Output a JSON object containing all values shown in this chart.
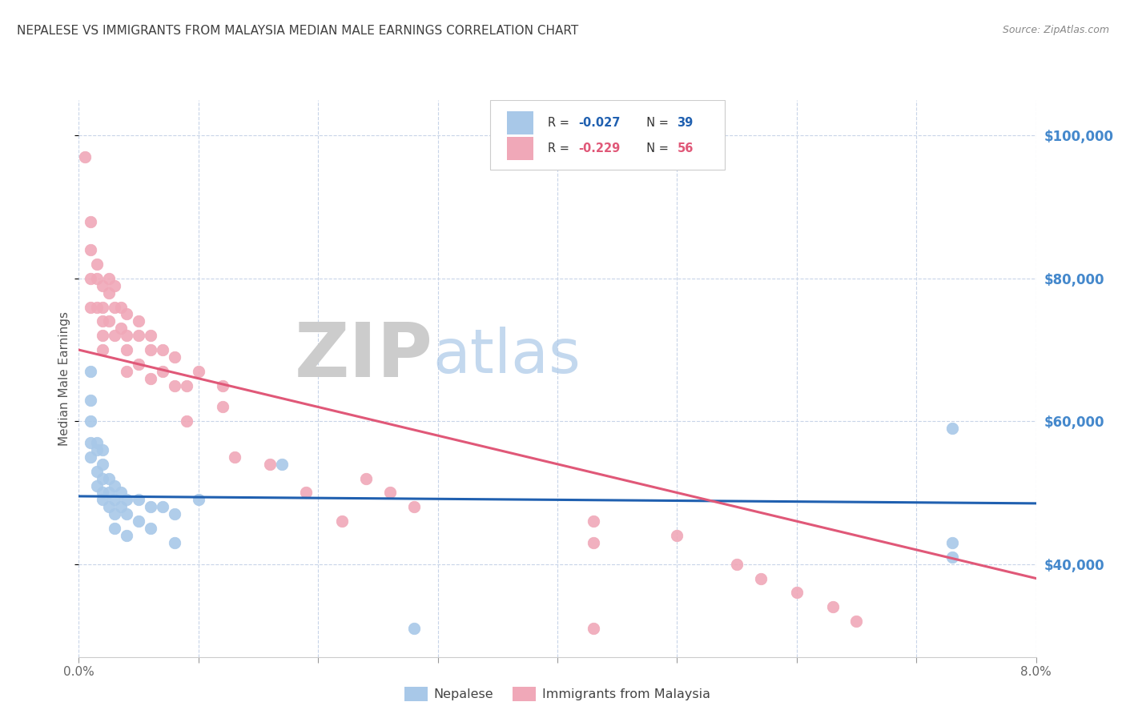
{
  "title": "NEPALESE VS IMMIGRANTS FROM MALAYSIA MEDIAN MALE EARNINGS CORRELATION CHART",
  "source": "Source: ZipAtlas.com",
  "ylabel": "Median Male Earnings",
  "xlim": [
    0.0,
    0.08
  ],
  "ylim": [
    27000,
    105000
  ],
  "xtick_positions": [
    0.0,
    0.01,
    0.02,
    0.03,
    0.04,
    0.05,
    0.06,
    0.07,
    0.08
  ],
  "xticklabels": [
    "0.0%",
    "",
    "",
    "",
    "",
    "",
    "",
    "",
    "8.0%"
  ],
  "ytick_positions": [
    40000,
    60000,
    80000,
    100000
  ],
  "ytick_labels_right": [
    "$40,000",
    "$60,000",
    "$80,000",
    "$100,000"
  ],
  "legend_r1": "R = -0.027",
  "legend_n1": "N = 39",
  "legend_r2": "R = -0.229",
  "legend_n2": "N = 56",
  "watermark_zip": "ZIP",
  "watermark_atlas": "atlas",
  "blue_color": "#a8c8e8",
  "pink_color": "#f0a8b8",
  "blue_line_color": "#2060b0",
  "pink_line_color": "#e05878",
  "background_color": "#ffffff",
  "grid_color": "#c8d4e8",
  "title_color": "#404040",
  "right_axis_color": "#4488cc",
  "legend_r_color": "#333333",
  "legend_val_blue": "#2060b0",
  "legend_val_pink": "#e05878",
  "nepalese_x": [
    0.001,
    0.001,
    0.001,
    0.001,
    0.001,
    0.0015,
    0.0015,
    0.0015,
    0.0015,
    0.002,
    0.002,
    0.002,
    0.002,
    0.002,
    0.0025,
    0.0025,
    0.0025,
    0.003,
    0.003,
    0.003,
    0.003,
    0.0035,
    0.0035,
    0.004,
    0.004,
    0.004,
    0.005,
    0.005,
    0.006,
    0.006,
    0.007,
    0.008,
    0.008,
    0.01,
    0.017,
    0.028,
    0.073,
    0.073,
    0.073
  ],
  "nepalese_y": [
    67000,
    63000,
    60000,
    57000,
    55000,
    57000,
    56000,
    53000,
    51000,
    56000,
    54000,
    52000,
    50000,
    49000,
    52000,
    50000,
    48000,
    51000,
    49000,
    47000,
    45000,
    50000,
    48000,
    49000,
    47000,
    44000,
    49000,
    46000,
    48000,
    45000,
    48000,
    47000,
    43000,
    49000,
    54000,
    31000,
    59000,
    43000,
    41000
  ],
  "malaysia_x": [
    0.0005,
    0.001,
    0.001,
    0.001,
    0.001,
    0.0015,
    0.0015,
    0.0015,
    0.002,
    0.002,
    0.002,
    0.002,
    0.002,
    0.0025,
    0.0025,
    0.0025,
    0.003,
    0.003,
    0.003,
    0.0035,
    0.0035,
    0.004,
    0.004,
    0.004,
    0.004,
    0.005,
    0.005,
    0.005,
    0.006,
    0.006,
    0.006,
    0.007,
    0.007,
    0.008,
    0.008,
    0.009,
    0.009,
    0.01,
    0.012,
    0.012,
    0.013,
    0.016,
    0.019,
    0.022,
    0.024,
    0.026,
    0.028,
    0.043,
    0.043,
    0.043,
    0.05,
    0.055,
    0.057,
    0.06,
    0.063,
    0.065
  ],
  "malaysia_y": [
    97000,
    88000,
    84000,
    80000,
    76000,
    82000,
    80000,
    76000,
    79000,
    76000,
    74000,
    72000,
    70000,
    80000,
    78000,
    74000,
    79000,
    76000,
    72000,
    76000,
    73000,
    75000,
    72000,
    70000,
    67000,
    74000,
    72000,
    68000,
    72000,
    70000,
    66000,
    70000,
    67000,
    69000,
    65000,
    65000,
    60000,
    67000,
    65000,
    62000,
    55000,
    54000,
    50000,
    46000,
    52000,
    50000,
    48000,
    46000,
    43000,
    31000,
    44000,
    40000,
    38000,
    36000,
    34000,
    32000
  ],
  "nepalese_line_x": [
    0.0,
    0.08
  ],
  "nepalese_line_y": [
    49500,
    48500
  ],
  "malaysia_line_x": [
    0.0,
    0.08
  ],
  "malaysia_line_y": [
    70000,
    38000
  ]
}
